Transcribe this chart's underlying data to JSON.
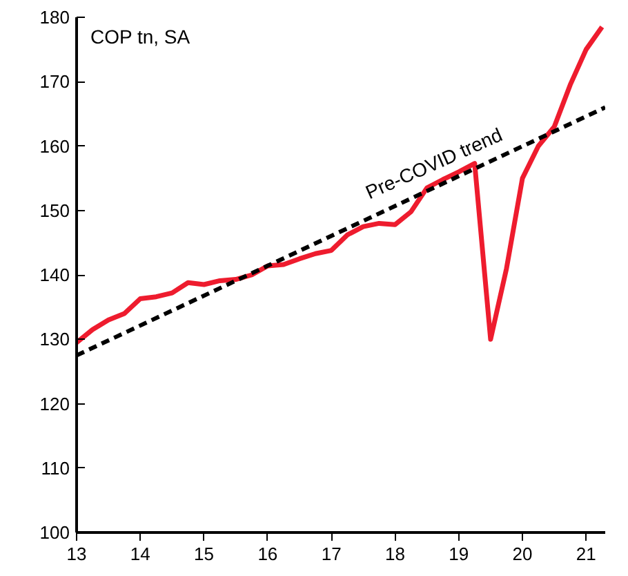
{
  "chart_data": {
    "type": "line",
    "title": "COP tn, SA",
    "xlim": [
      13,
      21.3
    ],
    "xticks": [
      13,
      14,
      15,
      16,
      17,
      18,
      19,
      20,
      21
    ],
    "ylim": [
      100,
      180
    ],
    "yticks": [
      100,
      110,
      120,
      130,
      140,
      150,
      160,
      170,
      180
    ],
    "grid": false,
    "marker": "none",
    "series": [
      {
        "color": "#ee1c2e",
        "line_style": "solid",
        "x": [
          13,
          13.25,
          13.5,
          13.75,
          14,
          14.25,
          14.5,
          14.75,
          15,
          15.25,
          15.5,
          15.75,
          16,
          16.25,
          16.5,
          16.75,
          17,
          17.25,
          17.5,
          17.75,
          18,
          18.25,
          18.5,
          18.75,
          19,
          19.25,
          19.5,
          19.75,
          20,
          20.25,
          20.5,
          20.75,
          21,
          21.25
        ],
        "values": [
          129.5,
          131.5,
          133,
          134,
          136.3,
          136.6,
          137.2,
          138.8,
          138.5,
          139.1,
          139.3,
          140,
          141.4,
          141.6,
          142.5,
          143.3,
          143.8,
          146.2,
          147.5,
          148,
          147.8,
          149.8,
          153.5,
          154.8,
          156,
          157.3,
          130,
          141,
          155,
          160,
          163,
          169.5,
          175,
          178.5
        ]
      },
      {
        "type": "line",
        "color": "#000000",
        "line_style": "dashed",
        "x": [
          13,
          21.3
        ],
        "values": [
          127.5,
          166
        ]
      }
    ],
    "annotations": [
      "Pre-COVID trend"
    ]
  }
}
